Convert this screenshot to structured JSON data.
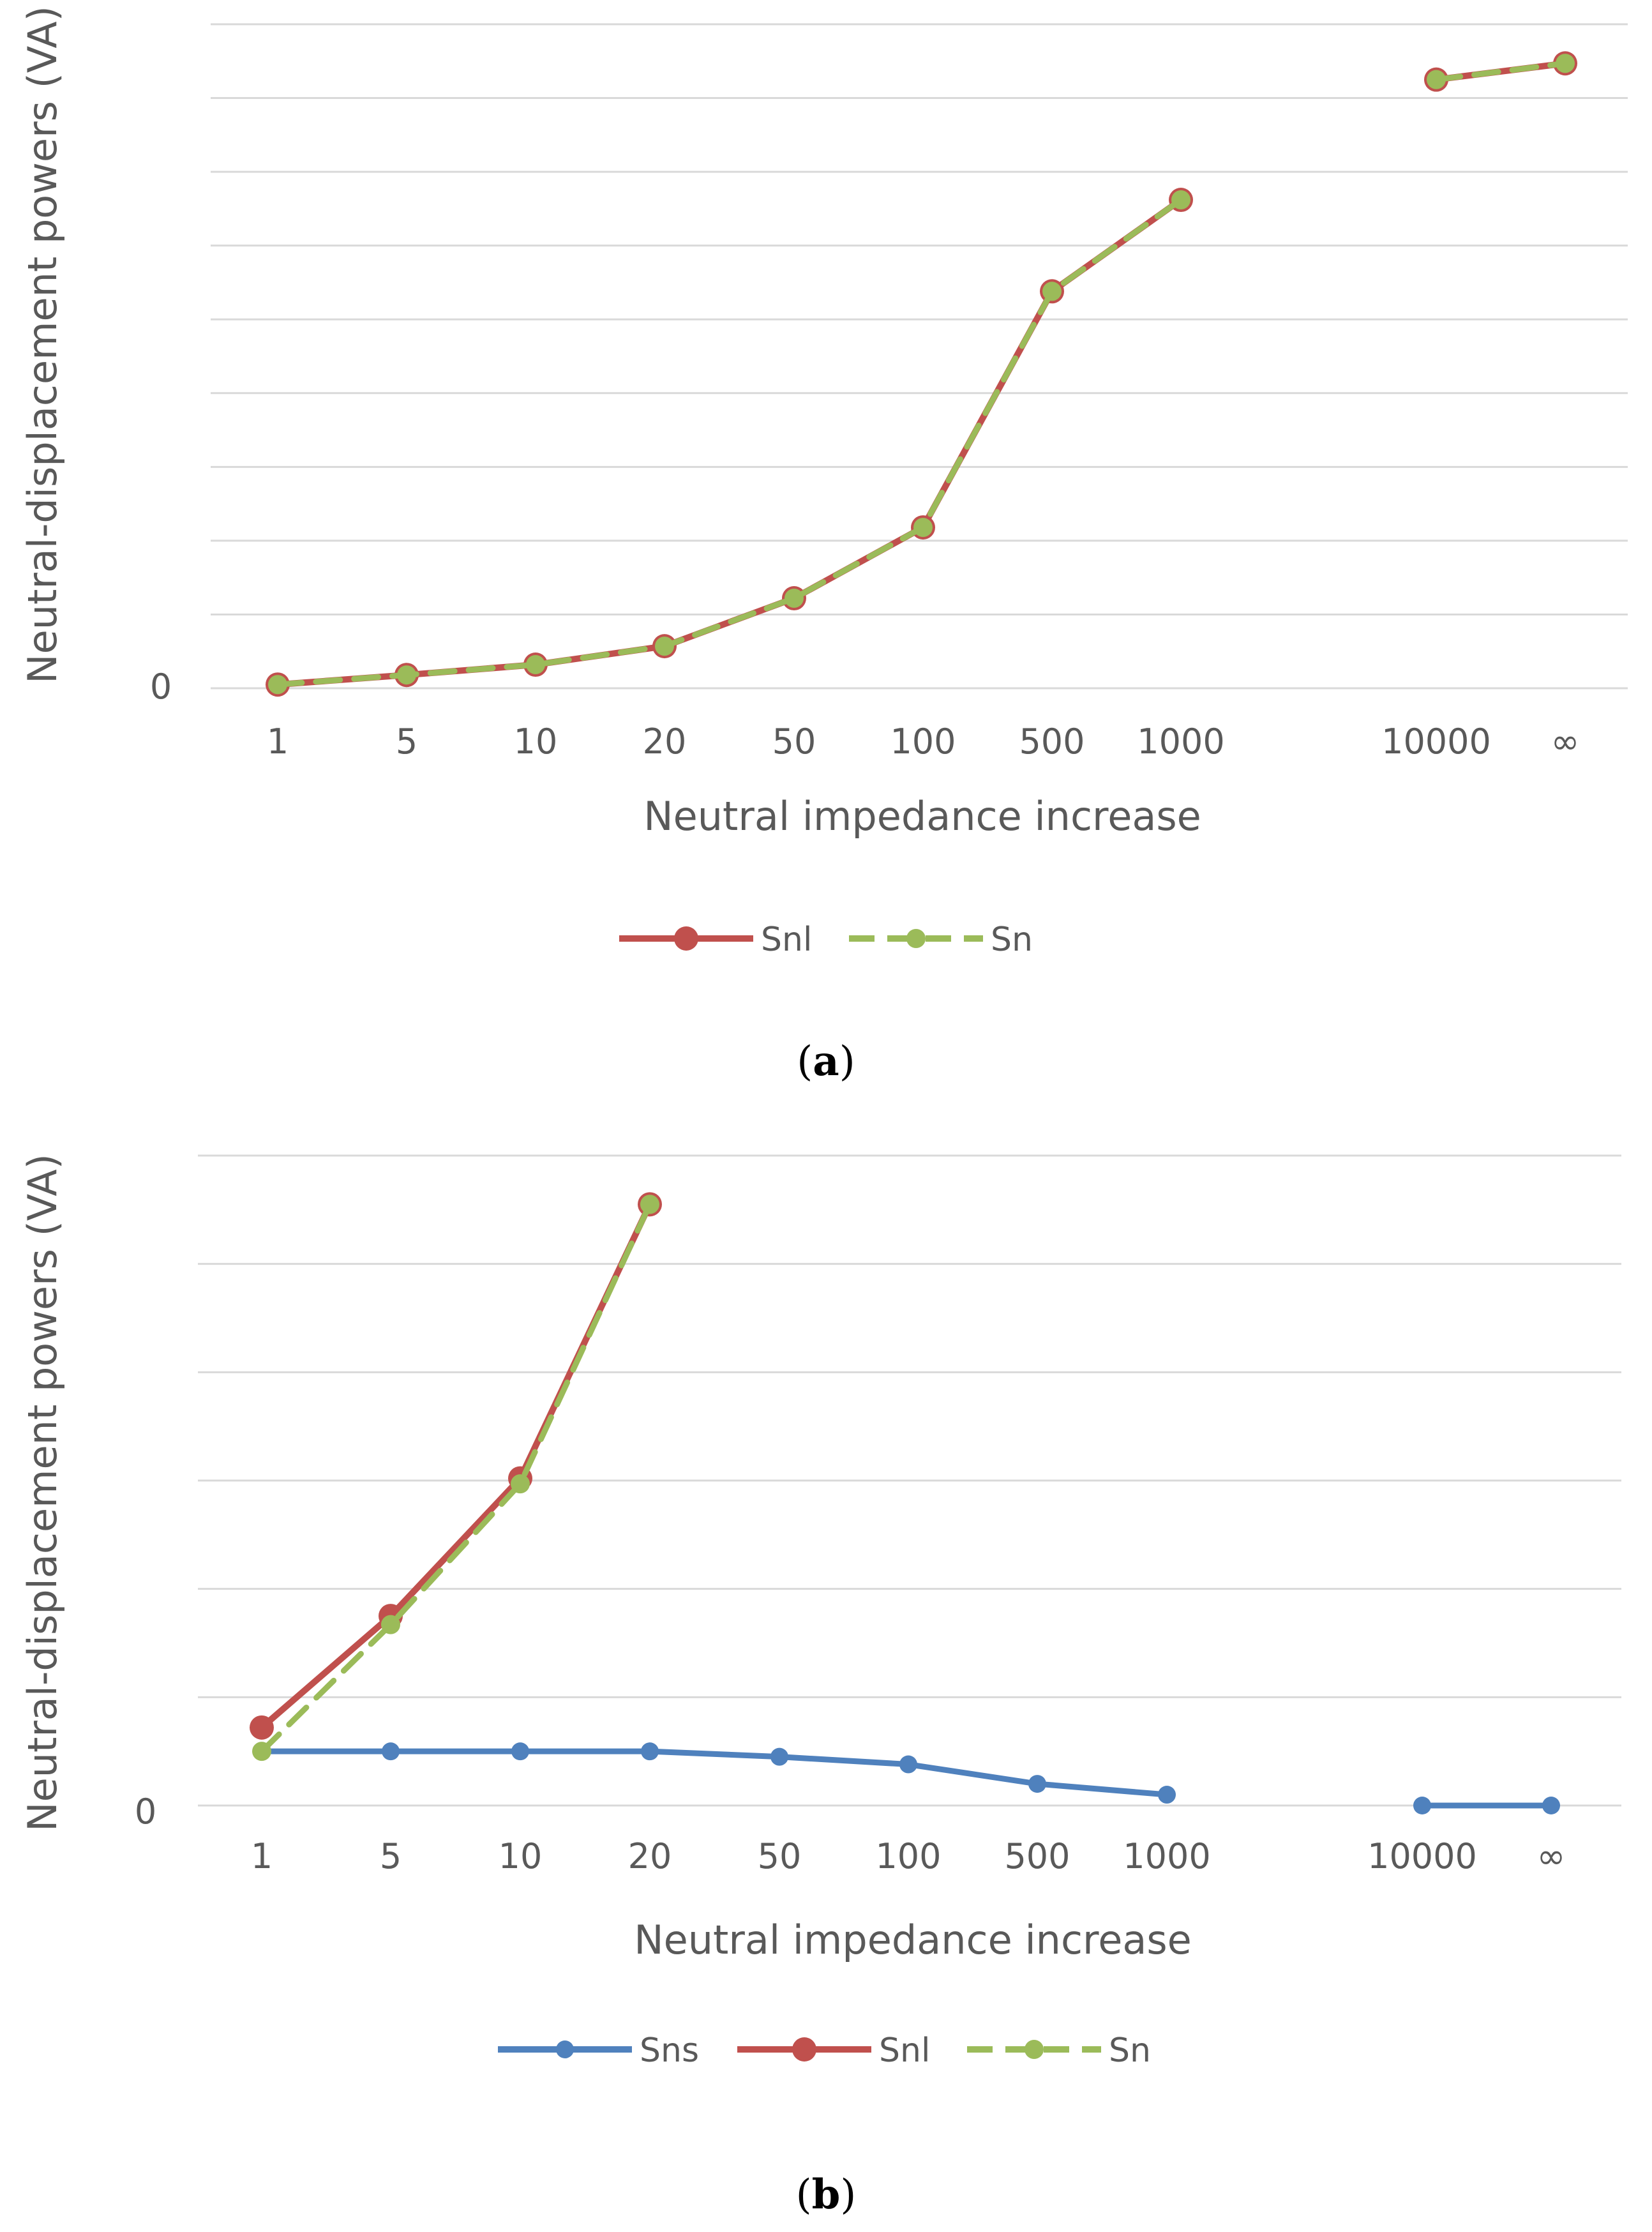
{
  "chart_data": [
    {
      "type": "line",
      "panel_label": "a",
      "caption_open": "(",
      "caption_close": ")",
      "xlabel": "Neutral impedance increase",
      "ylabel": "Neutral-displacement powers (VA)",
      "y_tick_labels": [
        "0"
      ],
      "ylim": [
        0,
        9
      ],
      "grid": true,
      "categories": [
        "1",
        "5",
        "10",
        "20",
        "50",
        "100",
        "500",
        "1000",
        "",
        "10000",
        "∞"
      ],
      "legend_position": "bottom",
      "series": [
        {
          "name": "Snl",
          "color": "#c0504d",
          "style": "solid",
          "values": [
            0.05,
            0.18,
            0.32,
            0.57,
            1.22,
            2.18,
            5.38,
            6.62,
            null,
            8.25,
            8.47
          ]
        },
        {
          "name": "Sn",
          "color": "#9bbb59",
          "style": "dashed",
          "values": [
            0.05,
            0.18,
            0.32,
            0.57,
            1.22,
            2.18,
            5.38,
            6.62,
            null,
            8.25,
            8.47
          ]
        }
      ]
    },
    {
      "type": "line",
      "panel_label": "b",
      "caption_open": "(",
      "caption_close": ")",
      "xlabel": "Neutral impedance increase",
      "ylabel": "Neutral-displacement powers (VA)",
      "y_tick_labels": [
        "0"
      ],
      "ylim": [
        0,
        6
      ],
      "grid": true,
      "categories": [
        "1",
        "5",
        "10",
        "20",
        "50",
        "100",
        "500",
        "1000",
        "",
        "10000",
        "∞"
      ],
      "legend_position": "bottom",
      "series": [
        {
          "name": "Sns",
          "color": "#4f81bd",
          "style": "solid",
          "values": [
            0.5,
            0.5,
            0.5,
            0.5,
            0.45,
            0.38,
            0.2,
            0.1,
            null,
            0.0,
            0.0
          ]
        },
        {
          "name": "Snl",
          "color": "#c0504d",
          "style": "solid",
          "values": [
            0.72,
            1.75,
            3.02,
            5.55,
            null,
            null,
            null,
            null,
            null,
            null,
            null
          ]
        },
        {
          "name": "Sn",
          "color": "#9bbb59",
          "style": "dashed",
          "values": [
            0.5,
            1.67,
            2.97,
            5.55,
            null,
            null,
            null,
            null,
            null,
            null,
            null
          ]
        }
      ]
    }
  ]
}
